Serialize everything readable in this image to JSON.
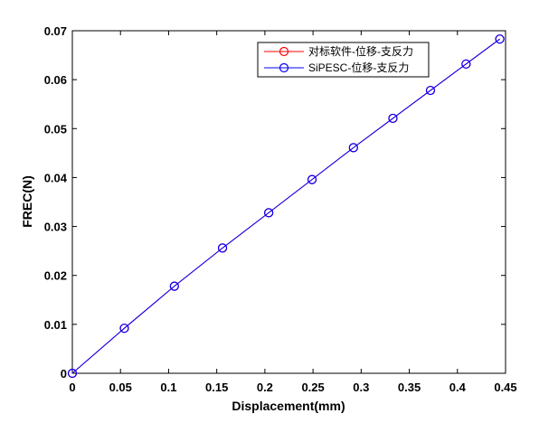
{
  "chart_data": {
    "type": "line",
    "title": "",
    "xlabel": "Displacement(mm)",
    "ylabel": "FREC(N)",
    "xlim": [
      0,
      0.45
    ],
    "ylim": [
      0,
      0.07
    ],
    "xticks": [
      0,
      0.05,
      0.1,
      0.15,
      0.2,
      0.25,
      0.3,
      0.35,
      0.4,
      0.45
    ],
    "yticks": [
      0,
      0.01,
      0.02,
      0.03,
      0.04,
      0.05,
      0.06,
      0.07
    ],
    "xtick_labels": [
      "0",
      "0.05",
      "0.1",
      "0.15",
      "0.2",
      "0.25",
      "0.3",
      "0.35",
      "0.4",
      "0.45"
    ],
    "ytick_labels": [
      "0",
      "0.01",
      "0.02",
      "0.03",
      "0.04",
      "0.05",
      "0.06",
      "0.07"
    ],
    "grid": false,
    "legend_position": "top-right",
    "series": [
      {
        "name": "对标软件-位移-支反力",
        "color": "#ff0000",
        "marker": "circle",
        "x": [
          0,
          0.054,
          0.106,
          0.156,
          0.204,
          0.249,
          0.292,
          0.333,
          0.372,
          0.409,
          0.444
        ],
        "y": [
          0,
          0.0092,
          0.0178,
          0.0256,
          0.0328,
          0.0396,
          0.0461,
          0.0521,
          0.0578,
          0.0632,
          0.0683
        ]
      },
      {
        "name": "SiPESC-位移-支反力",
        "color": "#0000ff",
        "marker": "circle",
        "x": [
          0,
          0.054,
          0.106,
          0.156,
          0.204,
          0.249,
          0.292,
          0.333,
          0.372,
          0.409,
          0.444
        ],
        "y": [
          0,
          0.0092,
          0.0178,
          0.0256,
          0.0328,
          0.0396,
          0.0461,
          0.0521,
          0.0578,
          0.0632,
          0.0683
        ]
      }
    ]
  }
}
